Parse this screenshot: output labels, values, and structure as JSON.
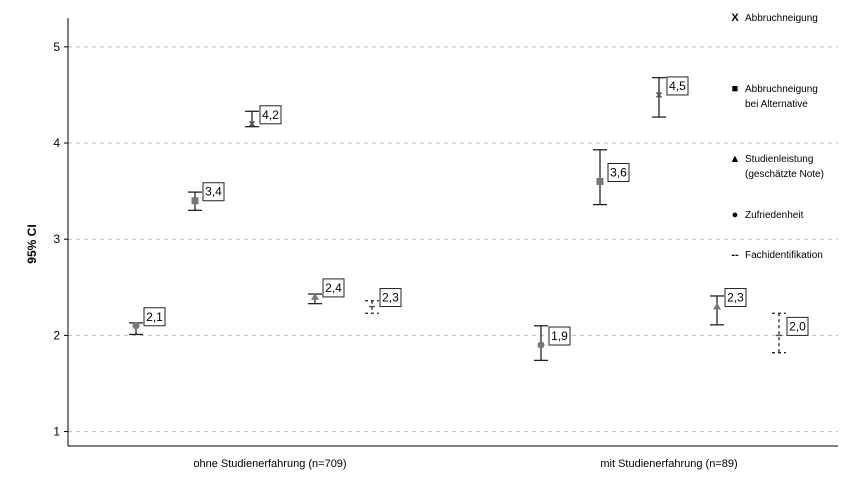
{
  "chart_data": {
    "type": "scatter",
    "ylabel": "95% CI",
    "ylim": [
      0.85,
      5.3
    ],
    "yticks": [
      "1",
      "2",
      "3",
      "4",
      "5"
    ],
    "grid": true,
    "legend_position": "right",
    "categories": [
      "ohne Studienerfahrung (n=709)",
      "mit Studienerfahrung (n=89)"
    ],
    "series": [
      {
        "name": "Abbruchneigung",
        "symbol": "X",
        "values": [
          4.2,
          4.5
        ],
        "ci_low": [
          4.17,
          4.27
        ],
        "ci_high": [
          4.33,
          4.68
        ],
        "labels": [
          "4,2",
          "4,5"
        ]
      },
      {
        "name": "Abbruchneigung bei Alternative",
        "symbol": "square",
        "values": [
          3.4,
          3.6
        ],
        "ci_low": [
          3.3,
          3.36
        ],
        "ci_high": [
          3.49,
          3.93
        ],
        "labels": [
          "3,4",
          "3,6"
        ]
      },
      {
        "name": "Studienleistung (geschätzte Note)",
        "symbol": "triangle",
        "values": [
          2.4,
          2.3
        ],
        "ci_low": [
          2.33,
          2.11
        ],
        "ci_high": [
          2.43,
          2.41
        ],
        "labels": [
          "2,4",
          "2,3"
        ]
      },
      {
        "name": "Zufriedenheit",
        "symbol": "circle",
        "values": [
          2.1,
          1.9
        ],
        "ci_low": [
          2.01,
          1.74
        ],
        "ci_high": [
          2.13,
          2.1
        ],
        "labels": [
          "2,1",
          "1,9"
        ]
      },
      {
        "name": "Fachidentifikation",
        "symbol": "dash",
        "values": [
          2.3,
          2.0
        ],
        "ci_low": [
          2.23,
          1.82
        ],
        "ci_high": [
          2.36,
          2.23
        ],
        "labels": [
          "2,3",
          "2,0"
        ]
      }
    ]
  },
  "legend": [
    {
      "symbol": "X",
      "lines": [
        "Abbruchneigung"
      ]
    },
    {
      "symbol": "■",
      "lines": [
        "Abbruchneigung",
        "bei Alternative"
      ]
    },
    {
      "symbol": "▲",
      "lines": [
        "Studienleistung",
        "(geschätzte Note)"
      ]
    },
    {
      "symbol": "●",
      "lines": [
        "Zufriedenheit"
      ]
    },
    {
      "symbol": "--",
      "lines": [
        "Fachidentifikation"
      ]
    }
  ]
}
